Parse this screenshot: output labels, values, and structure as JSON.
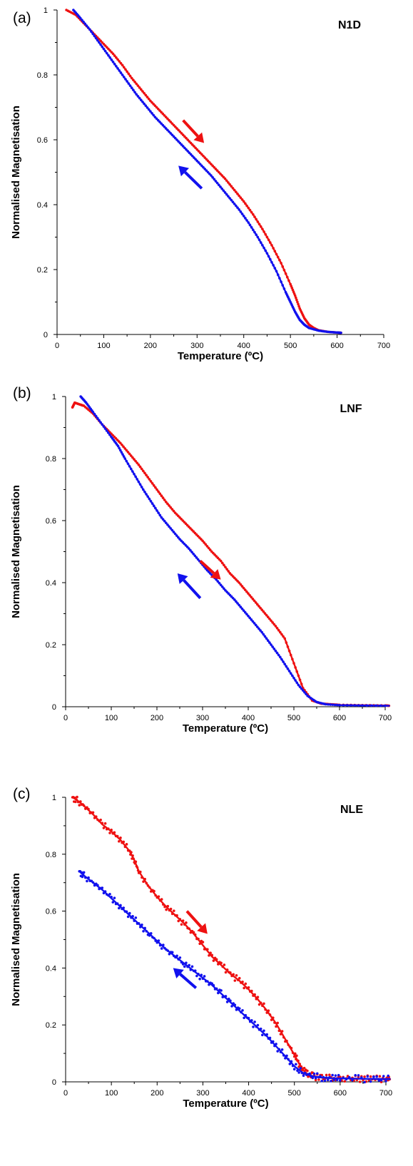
{
  "chart_data": [
    {
      "type": "line",
      "panel_label": "(a)",
      "title": "N1D",
      "xlabel": "Temperature (ºC)",
      "ylabel": "Normalised Magnetisation",
      "xlim": [
        0,
        700
      ],
      "ylim": [
        0,
        1
      ],
      "xticks": [
        "0",
        "100",
        "200",
        "300",
        "400",
        "500",
        "600",
        "700"
      ],
      "yticks": [
        "0",
        "0.2",
        "0.4",
        "0.6",
        "0.8",
        "1"
      ],
      "grid": false,
      "colors": {
        "heating": "#ee1111",
        "cooling": "#1111ee"
      },
      "series": [
        {
          "x": [
            20,
            40,
            60,
            80,
            100,
            120,
            140,
            160,
            180,
            200,
            220,
            240,
            260,
            280,
            300,
            320,
            340,
            360,
            380,
            400,
            420,
            440,
            460,
            480,
            500,
            510,
            520,
            530,
            540,
            550,
            560,
            580,
            600,
            610
          ],
          "y": [
            1.0,
            0.985,
            0.955,
            0.925,
            0.895,
            0.865,
            0.83,
            0.79,
            0.755,
            0.72,
            0.69,
            0.66,
            0.63,
            0.6,
            0.57,
            0.54,
            0.51,
            0.48,
            0.445,
            0.41,
            0.37,
            0.325,
            0.275,
            0.22,
            0.155,
            0.12,
            0.08,
            0.05,
            0.03,
            0.02,
            0.013,
            0.008,
            0.006,
            0.005
          ]
        },
        {
          "x": [
            35,
            50,
            70,
            90,
            110,
            130,
            150,
            170,
            190,
            210,
            230,
            250,
            270,
            290,
            310,
            330,
            350,
            370,
            390,
            410,
            430,
            450,
            470,
            490,
            500,
            510,
            520,
            530,
            540,
            560,
            580,
            600,
            610
          ],
          "y": [
            1.0,
            0.975,
            0.94,
            0.9,
            0.86,
            0.82,
            0.78,
            0.74,
            0.705,
            0.67,
            0.64,
            0.61,
            0.58,
            0.55,
            0.52,
            0.49,
            0.455,
            0.42,
            0.385,
            0.345,
            0.3,
            0.25,
            0.195,
            0.13,
            0.1,
            0.07,
            0.045,
            0.03,
            0.02,
            0.012,
            0.008,
            0.006,
            0.005
          ]
        }
      ],
      "arrows": [
        {
          "from": [
            270,
            0.66
          ],
          "to": [
            315,
            0.59
          ]
        },
        {
          "from": [
            310,
            0.45
          ],
          "to": [
            260,
            0.52
          ]
        }
      ]
    },
    {
      "type": "line",
      "panel_label": "(b)",
      "title": "LNF",
      "xlabel": "Temperature (ºC)",
      "ylabel": "Normalised Magnetisation",
      "xlim": [
        0,
        700
      ],
      "ylim": [
        0,
        1
      ],
      "xticks": [
        "0",
        "100",
        "200",
        "300",
        "400",
        "500",
        "600",
        "700"
      ],
      "yticks": [
        "0",
        "0.2",
        "0.4",
        "0.6",
        "0.8",
        "1"
      ],
      "grid": false,
      "colors": {
        "heating": "#ee1111",
        "cooling": "#1111ee"
      },
      "series": [
        {
          "x": [
            15,
            20,
            30,
            40,
            60,
            80,
            100,
            120,
            140,
            160,
            180,
            200,
            220,
            240,
            260,
            280,
            300,
            320,
            340,
            360,
            380,
            400,
            420,
            440,
            460,
            480,
            500,
            520,
            540,
            560,
            580,
            600,
            650,
            700,
            710
          ],
          "y": [
            0.965,
            0.98,
            0.975,
            0.97,
            0.945,
            0.91,
            0.88,
            0.85,
            0.815,
            0.78,
            0.74,
            0.7,
            0.66,
            0.625,
            0.595,
            0.565,
            0.535,
            0.5,
            0.47,
            0.43,
            0.4,
            0.365,
            0.33,
            0.295,
            0.26,
            0.22,
            0.14,
            0.06,
            0.02,
            0.01,
            0.008,
            0.006,
            0.005,
            0.004,
            0.003
          ]
        },
        {
          "x": [
            33,
            45,
            60,
            80,
            100,
            115,
            130,
            150,
            170,
            190,
            210,
            230,
            250,
            270,
            290,
            310,
            330,
            350,
            370,
            390,
            410,
            430,
            450,
            470,
            490,
            510,
            530,
            550,
            570,
            600,
            650,
            710
          ],
          "y": [
            1.0,
            0.98,
            0.95,
            0.91,
            0.87,
            0.84,
            0.8,
            0.75,
            0.7,
            0.655,
            0.61,
            0.575,
            0.54,
            0.51,
            0.475,
            0.44,
            0.41,
            0.375,
            0.345,
            0.31,
            0.275,
            0.24,
            0.2,
            0.16,
            0.115,
            0.07,
            0.035,
            0.015,
            0.008,
            0.005,
            0.004,
            0.003
          ]
        }
      ],
      "arrows": [
        {
          "from": [
            295,
            0.47
          ],
          "to": [
            340,
            0.41
          ]
        },
        {
          "from": [
            295,
            0.35
          ],
          "to": [
            245,
            0.43
          ]
        }
      ]
    },
    {
      "type": "scatter",
      "panel_label": "(c)",
      "title": "NLE",
      "xlabel": "Temperature (ºC)",
      "ylabel": "Normalised Magnetisation",
      "xlim": [
        0,
        700
      ],
      "ylim": [
        0,
        1
      ],
      "xticks": [
        "0",
        "100",
        "200",
        "300",
        "400",
        "500",
        "600",
        "700"
      ],
      "yticks": [
        "0",
        "0.2",
        "0.4",
        "0.6",
        "0.8",
        "1"
      ],
      "grid": false,
      "colors": {
        "heating": "#ee1111",
        "cooling": "#1111ee"
      },
      "series": [
        {
          "x": [
            15,
            25,
            40,
            60,
            80,
            100,
            120,
            140,
            150,
            160,
            180,
            200,
            220,
            240,
            260,
            280,
            300,
            320,
            340,
            360,
            380,
            400,
            420,
            440,
            460,
            480,
            500,
            510,
            520,
            530,
            540,
            560,
            580,
            600,
            620,
            640,
            660,
            680,
            700,
            710
          ],
          "y": [
            1.0,
            0.99,
            0.97,
            0.94,
            0.905,
            0.88,
            0.85,
            0.81,
            0.78,
            0.74,
            0.69,
            0.65,
            0.615,
            0.585,
            0.555,
            0.52,
            0.48,
            0.44,
            0.41,
            0.38,
            0.355,
            0.325,
            0.29,
            0.25,
            0.205,
            0.15,
            0.095,
            0.065,
            0.04,
            0.025,
            0.02,
            0.015,
            0.013,
            0.012,
            0.012,
            0.011,
            0.01,
            0.01,
            0.01,
            0.01
          ]
        },
        {
          "x": [
            30,
            40,
            60,
            80,
            100,
            120,
            140,
            160,
            180,
            200,
            220,
            240,
            260,
            280,
            300,
            320,
            340,
            360,
            380,
            400,
            420,
            440,
            460,
            480,
            500,
            520,
            540,
            560,
            580,
            600,
            640,
            680,
            710
          ],
          "y": [
            0.74,
            0.725,
            0.7,
            0.675,
            0.645,
            0.615,
            0.585,
            0.555,
            0.525,
            0.495,
            0.465,
            0.44,
            0.415,
            0.39,
            0.365,
            0.34,
            0.31,
            0.28,
            0.25,
            0.22,
            0.19,
            0.16,
            0.125,
            0.09,
            0.055,
            0.03,
            0.02,
            0.015,
            0.013,
            0.012,
            0.011,
            0.01,
            0.01
          ]
        }
      ],
      "arrows": [
        {
          "from": [
            265,
            0.6
          ],
          "to": [
            310,
            0.52
          ]
        },
        {
          "from": [
            285,
            0.33
          ],
          "to": [
            235,
            0.4
          ]
        }
      ]
    }
  ]
}
